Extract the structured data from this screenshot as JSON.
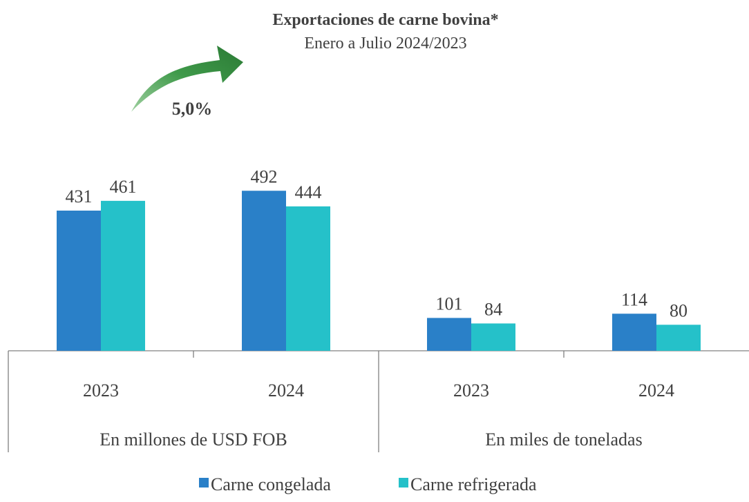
{
  "chart_data": {
    "type": "bar",
    "title": "Exportaciones de carne bovina*",
    "subtitle": "Enero a Julio 2024/2023",
    "annotation": "5,0%",
    "categories": [
      "2023",
      "2024",
      "2023",
      "2024"
    ],
    "groups": [
      {
        "label": "En millones de USD FOB",
        "categories": [
          0,
          1
        ]
      },
      {
        "label": "En miles de toneladas",
        "categories": [
          2,
          3
        ]
      }
    ],
    "series": [
      {
        "name": "Carne congelada",
        "color": "#2a80c8",
        "values": [
          431,
          492,
          101,
          114
        ]
      },
      {
        "name": "Carne refrigerada",
        "color": "#25c1c9",
        "values": [
          461,
          444,
          84,
          80
        ]
      }
    ]
  }
}
